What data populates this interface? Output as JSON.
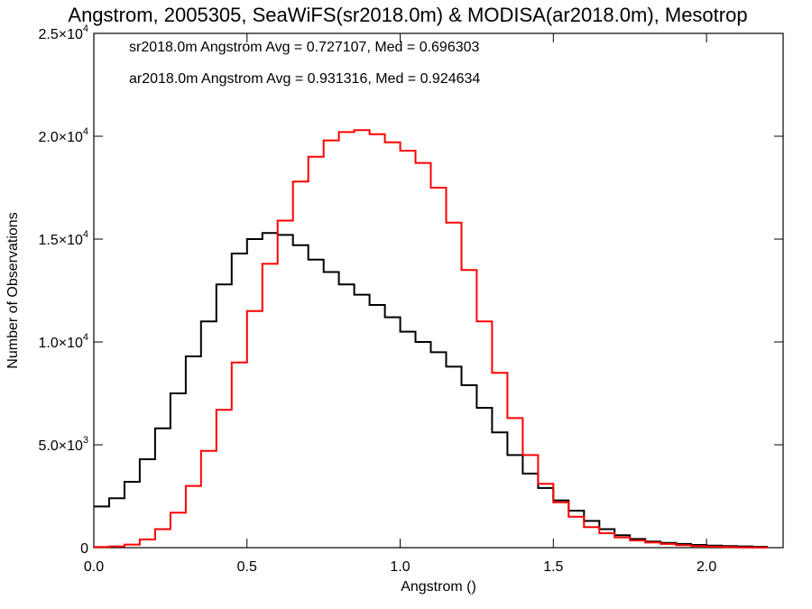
{
  "chart_data": {
    "type": "line",
    "title": "Angstrom, 2005305, SeaWiFS(sr2018.0m) & MODISA(ar2018.0m), Mesotrop",
    "xlabel": "Angstrom ()",
    "ylabel": "Number of Observations",
    "xlim": [
      0.0,
      2.25
    ],
    "ylim": [
      0,
      25000
    ],
    "x_ticks": [
      {
        "value": 0.0,
        "label": "0.0"
      },
      {
        "value": 0.5,
        "label": "0.5"
      },
      {
        "value": 1.0,
        "label": "1.0"
      },
      {
        "value": 1.5,
        "label": "1.5"
      },
      {
        "value": 2.0,
        "label": "2.0"
      }
    ],
    "y_ticks": [
      {
        "value": 0,
        "label": "0"
      },
      {
        "value": 5000,
        "label": "5.0×10",
        "exp": "3"
      },
      {
        "value": 10000,
        "label": "1.0×10",
        "exp": "4"
      },
      {
        "value": 15000,
        "label": "1.5×10",
        "exp": "4"
      },
      {
        "value": 20000,
        "label": "2.0×10",
        "exp": "4"
      },
      {
        "value": 25000,
        "label": "2.5×10",
        "exp": "4"
      }
    ],
    "annotations": [
      {
        "text": "sr2018.0m Angstrom Avg = 0.727107, Med = 0.696303",
        "color": "#000000"
      },
      {
        "text": "ar2018.0m Angstrom Avg = 0.931316, Med = 0.924634",
        "color": "#ff0000"
      }
    ],
    "series": [
      {
        "color": "#000000",
        "x": [
          0.0,
          0.05,
          0.1,
          0.15,
          0.2,
          0.25,
          0.3,
          0.35,
          0.4,
          0.45,
          0.5,
          0.55,
          0.6,
          0.65,
          0.7,
          0.75,
          0.8,
          0.85,
          0.9,
          0.95,
          1.0,
          1.05,
          1.1,
          1.15,
          1.2,
          1.25,
          1.3,
          1.35,
          1.4,
          1.45,
          1.5,
          1.55,
          1.6,
          1.65,
          1.7,
          1.75,
          1.8,
          1.85,
          1.9,
          1.95,
          2.0,
          2.05,
          2.1,
          2.15
        ],
        "y": [
          2000,
          2400,
          3200,
          4300,
          5800,
          7500,
          9300,
          11000,
          12800,
          14300,
          15000,
          15300,
          15200,
          14700,
          14000,
          13400,
          12800,
          12300,
          11800,
          11200,
          10500,
          10000,
          9500,
          8800,
          7900,
          6800,
          5600,
          4500,
          3600,
          2900,
          2300,
          1800,
          1300,
          900,
          600,
          420,
          300,
          230,
          180,
          130,
          100,
          80,
          60,
          40
        ]
      },
      {
        "color": "#ff0000",
        "x": [
          0.0,
          0.05,
          0.1,
          0.15,
          0.2,
          0.25,
          0.3,
          0.35,
          0.4,
          0.45,
          0.5,
          0.55,
          0.6,
          0.65,
          0.7,
          0.75,
          0.8,
          0.85,
          0.9,
          0.95,
          1.0,
          1.05,
          1.1,
          1.15,
          1.2,
          1.25,
          1.3,
          1.35,
          1.4,
          1.45,
          1.5,
          1.55,
          1.6,
          1.65,
          1.7,
          1.75,
          1.8,
          1.85,
          1.9,
          1.95,
          2.0,
          2.05,
          2.1,
          2.15
        ],
        "y": [
          30,
          60,
          150,
          400,
          900,
          1700,
          3000,
          4700,
          6700,
          9000,
          11500,
          13800,
          15900,
          17800,
          19000,
          19800,
          20200,
          20300,
          20100,
          19700,
          19300,
          18700,
          17500,
          15800,
          13500,
          11000,
          8500,
          6300,
          4500,
          3100,
          2200,
          1500,
          1000,
          700,
          500,
          350,
          250,
          180,
          120,
          80,
          50,
          30,
          15,
          5
        ]
      }
    ]
  }
}
